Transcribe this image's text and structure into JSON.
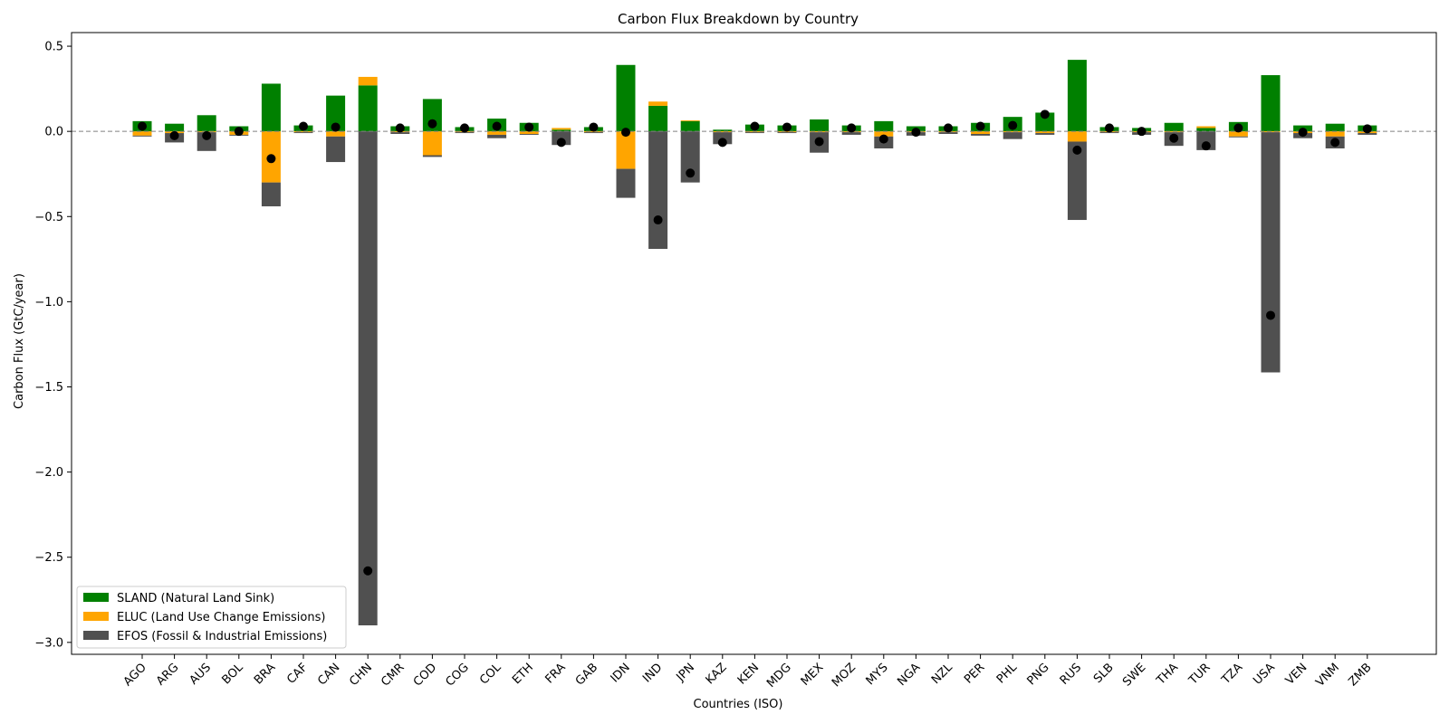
{
  "chart_data": {
    "type": "bar",
    "title": "Carbon Flux Breakdown by Country",
    "xlabel": "Countries (ISO)",
    "ylabel": "Carbon Flux (GtC/year)",
    "ylim": [
      -3.07,
      0.58
    ],
    "yticks": [
      0.5,
      0.0,
      -0.5,
      -1.0,
      -1.5,
      -2.0,
      -2.5,
      -3.0
    ],
    "ytick_labels": [
      "0.5",
      "0.0",
      "−0.5",
      "−1.0",
      "−1.5",
      "−2.0",
      "−2.5",
      "−3.0"
    ],
    "grid": false,
    "zero_line": true,
    "legend_position": "lower-left",
    "categories": [
      "AGO",
      "ARG",
      "AUS",
      "BOL",
      "BRA",
      "CAF",
      "CAN",
      "CHN",
      "CMR",
      "COD",
      "COG",
      "COL",
      "ETH",
      "FRA",
      "GAB",
      "IDN",
      "IND",
      "JPN",
      "KAZ",
      "KEN",
      "MDG",
      "MEX",
      "MOZ",
      "MYS",
      "NGA",
      "NZL",
      "PER",
      "PHL",
      "PNG",
      "RUS",
      "SLB",
      "SWE",
      "THA",
      "TUR",
      "TZA",
      "USA",
      "VEN",
      "VNM",
      "ZMB"
    ],
    "series": [
      {
        "name": "SLAND (Natural Land Sink)",
        "color": "#008000",
        "values": [
          0.06,
          0.045,
          0.095,
          0.03,
          0.28,
          0.035,
          0.21,
          0.27,
          0.03,
          0.19,
          0.025,
          0.075,
          0.05,
          0.01,
          0.025,
          0.39,
          0.15,
          0.06,
          0.01,
          0.04,
          0.035,
          0.07,
          0.035,
          0.06,
          0.03,
          0.03,
          0.05,
          0.085,
          0.11,
          0.42,
          0.025,
          0.02,
          0.05,
          0.02,
          0.055,
          0.33,
          0.035,
          0.045,
          0.035
        ]
      },
      {
        "name": "ELUC (Land Use Change Emissions)",
        "color": "#FFA500",
        "values": [
          -0.025,
          -0.01,
          -0.005,
          -0.02,
          -0.3,
          -0.005,
          -0.03,
          0.05,
          -0.005,
          -0.14,
          -0.005,
          -0.02,
          -0.015,
          0.01,
          -0.005,
          -0.22,
          0.025,
          0.005,
          -0.005,
          -0.005,
          -0.005,
          -0.005,
          -0.005,
          -0.03,
          -0.005,
          -0.005,
          -0.015,
          -0.005,
          -0.01,
          -0.06,
          -0.005,
          -0.005,
          -0.005,
          0.01,
          -0.03,
          -0.005,
          -0.01,
          -0.03,
          -0.01
        ]
      },
      {
        "name": "EFOS (Fossil & Industrial Emissions)",
        "color": "#505050",
        "values": [
          -0.005,
          -0.055,
          -0.11,
          -0.005,
          -0.14,
          -0.005,
          -0.15,
          -2.9,
          -0.01,
          -0.01,
          -0.005,
          -0.02,
          -0.005,
          -0.08,
          -0.005,
          -0.17,
          -0.69,
          -0.3,
          -0.07,
          -0.005,
          -0.005,
          -0.12,
          -0.015,
          -0.07,
          -0.02,
          -0.01,
          -0.01,
          -0.04,
          -0.01,
          -0.46,
          -0.005,
          -0.015,
          -0.08,
          -0.11,
          -0.005,
          -1.41,
          -0.03,
          -0.07,
          -0.01
        ]
      }
    ],
    "net": [
      0.03,
      -0.025,
      -0.025,
      0.0,
      -0.16,
      0.03,
      0.025,
      -2.58,
      0.02,
      0.045,
      0.02,
      0.03,
      0.025,
      -0.065,
      0.025,
      -0.005,
      -0.52,
      -0.245,
      -0.065,
      0.03,
      0.025,
      -0.06,
      0.02,
      -0.045,
      -0.005,
      0.02,
      0.03,
      0.035,
      0.1,
      -0.11,
      0.02,
      0.0,
      -0.04,
      -0.085,
      0.02,
      -1.08,
      -0.005,
      -0.065,
      0.015
    ],
    "net_marker_color": "#000000"
  }
}
